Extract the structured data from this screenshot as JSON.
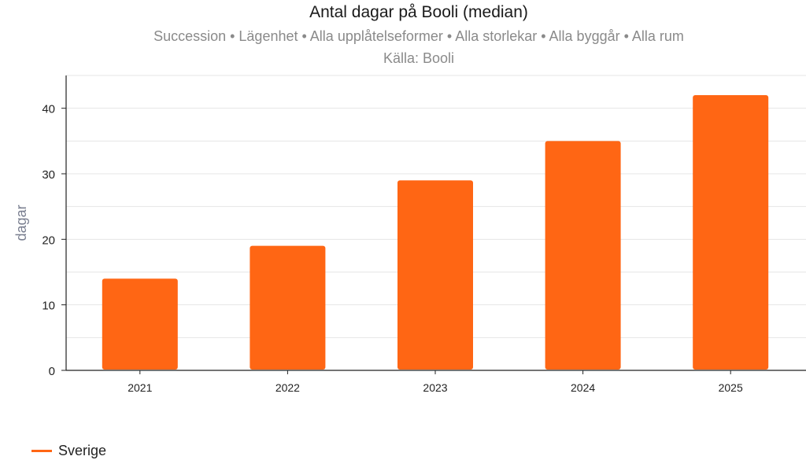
{
  "header": {
    "title": "Antal dagar på Booli (median)",
    "subtitle": "Succession • Lägenhet • Alla upplåtelseformer • Alla storlekar • Alla byggår • Alla rum",
    "source": "Källa: Booli"
  },
  "colors": {
    "bar": "#ff6614",
    "grid": "#e6e6e6",
    "axis": "#222222",
    "ylabel": "#7b8091"
  },
  "chart_data": {
    "type": "bar",
    "title": "Antal dagar på Booli (median)",
    "xlabel": "",
    "ylabel": "dagar",
    "categories": [
      "2021",
      "2022",
      "2023",
      "2024",
      "2025"
    ],
    "series": [
      {
        "name": "Sverige",
        "values": [
          14,
          19,
          29,
          35,
          42
        ]
      }
    ],
    "ylim": [
      0,
      45
    ],
    "yticks": [
      0,
      10,
      20,
      30,
      40
    ],
    "grid": true,
    "legend": "bottom-left"
  },
  "legend": {
    "items": [
      {
        "label": "Sverige"
      }
    ]
  }
}
